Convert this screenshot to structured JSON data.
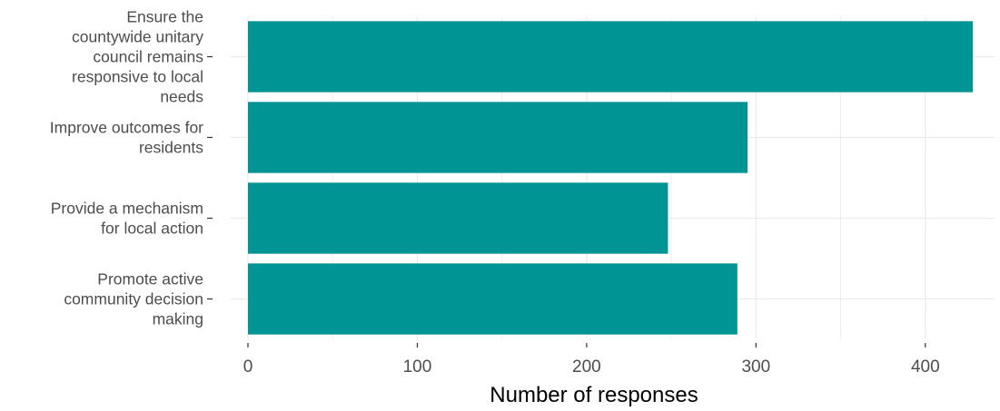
{
  "chart_data": {
    "type": "bar",
    "orientation": "horizontal",
    "categories": [
      "Ensure the countywide unitary council remains responsive to local needs",
      "Improve outcomes for residents",
      "Provide a mechanism for local action",
      "Promote active community decision making"
    ],
    "category_lines": [
      [
        "Ensure the",
        "countywide unitary",
        "council remains",
        "responsive to local",
        "needs"
      ],
      [
        "Improve outcomes for",
        "residents"
      ],
      [
        "Provide a mechanism",
        "for local action"
      ],
      [
        "Promote active",
        "community decision",
        "making"
      ]
    ],
    "values": [
      428,
      295,
      248,
      289
    ],
    "xlabel": "Number of responses",
    "ylabel": "",
    "xlim": [
      0,
      435
    ],
    "x_ticks": [
      0,
      100,
      200,
      300,
      400
    ],
    "bar_color": "#009494",
    "grid_color": "#ebebeb",
    "grid": true,
    "legend": "none"
  }
}
